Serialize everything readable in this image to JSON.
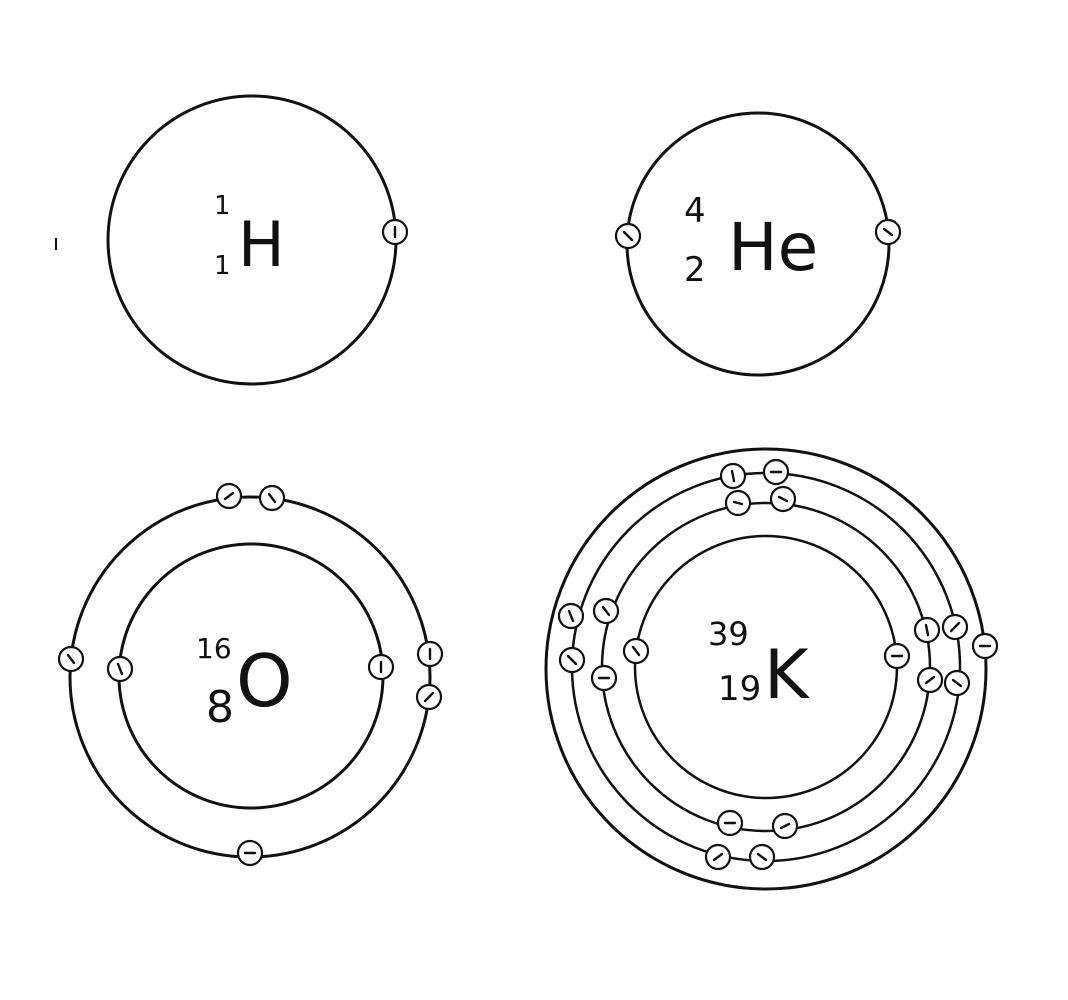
{
  "atoms": [
    {
      "id": "hydrogen",
      "symbol": "H",
      "mass": "1",
      "atomic_number": "1",
      "shells": [
        1
      ]
    },
    {
      "id": "helium",
      "symbol": "He",
      "mass": "4",
      "atomic_number": "2",
      "shells": [
        2
      ]
    },
    {
      "id": "oxygen",
      "symbol": "O",
      "mass": "16",
      "atomic_number": "8",
      "shells": [
        2,
        6
      ]
    },
    {
      "id": "potassium",
      "symbol": "K",
      "mass": "39",
      "atomic_number": "19",
      "shells": [
        2,
        8,
        8,
        1
      ]
    }
  ],
  "electron_label": "-",
  "colors": {
    "line": "#111111",
    "background": "#ffffff"
  }
}
